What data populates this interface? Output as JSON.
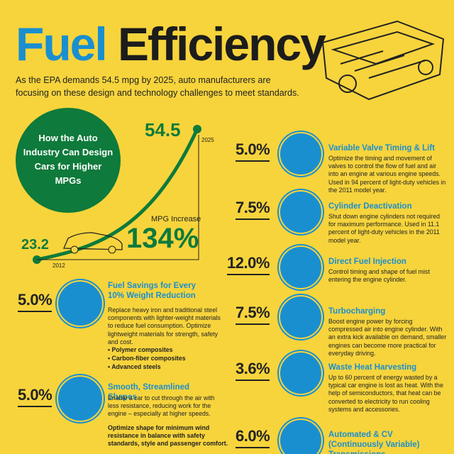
{
  "header": {
    "title_fuel": "Fuel",
    "title_efficiency": "Efficiency",
    "intro": "As the EPA demands 54.5 mpg by 2025, auto manufacturers are focusing on these design and technology challenges to meet standards."
  },
  "mpg_chart": {
    "heading": "How the Auto Industry Can Design Cars for Higher MPGs",
    "start_value": "23.2",
    "start_year": "2012",
    "end_value": "54.5",
    "end_year": "2025",
    "increase_label": "MPG Increase",
    "increase": "134%"
  },
  "left_items": [
    {
      "percent": "5.0%",
      "title": "Fuel Savings for Every 10% Weight Reduction",
      "text": "Replace heavy iron and traditional steel components with lighter-weight materials to reduce fuel consumption. Optimize lightweight materials for strength, safety and cost.",
      "bullets": [
        "Polymer composites",
        "Carbon-fiber composites",
        "Advanced steels"
      ]
    },
    {
      "percent": "5.0%",
      "title": "Smooth, Streamlined Shapes",
      "text": "Enable a car to cut through the air with less resistance, reducing work for the engine – especially at higher speeds.",
      "note": "Optimize shape for minimum wind resistance in balance with safety standards, style and passenger comfort."
    }
  ],
  "right_items": [
    {
      "percent": "5.0%",
      "title": "Variable Valve Timing & Lift",
      "text": "Optimize the timing and movement of valves to control the flow of fuel and air into an engine at various engine speeds. Used in 94 percent of light-duty vehicles in the 2011 model year."
    },
    {
      "percent": "7.5%",
      "title": "Cylinder Deactivation",
      "text": "Shut down engine cylinders not required for maximum performance. Used in 11.1 percent of light-duty vehicles in the 2011 model year."
    },
    {
      "percent": "12.0%",
      "title": "Direct Fuel Injection",
      "text": "Control timing and shape of fuel mist entering the engine cylinder."
    },
    {
      "percent": "7.5%",
      "title": "Turbocharging",
      "text": "Boost engine power by forcing compressed air into engine cylinder. With an extra kick available on demand, smaller engines can become more practical for everyday driving."
    },
    {
      "percent": "3.6%",
      "title": "Waste Heat Harvesting",
      "text": "Up to 60 percent of energy wasted by a typical car engine is lost as heat. With the help of semiconductors, that heat can be converted to electricity to run cooling systems and accessories."
    },
    {
      "percent": "6.0%",
      "title": "Automated & CV (Continuously Variable) Transmissions",
      "text": ""
    }
  ]
}
